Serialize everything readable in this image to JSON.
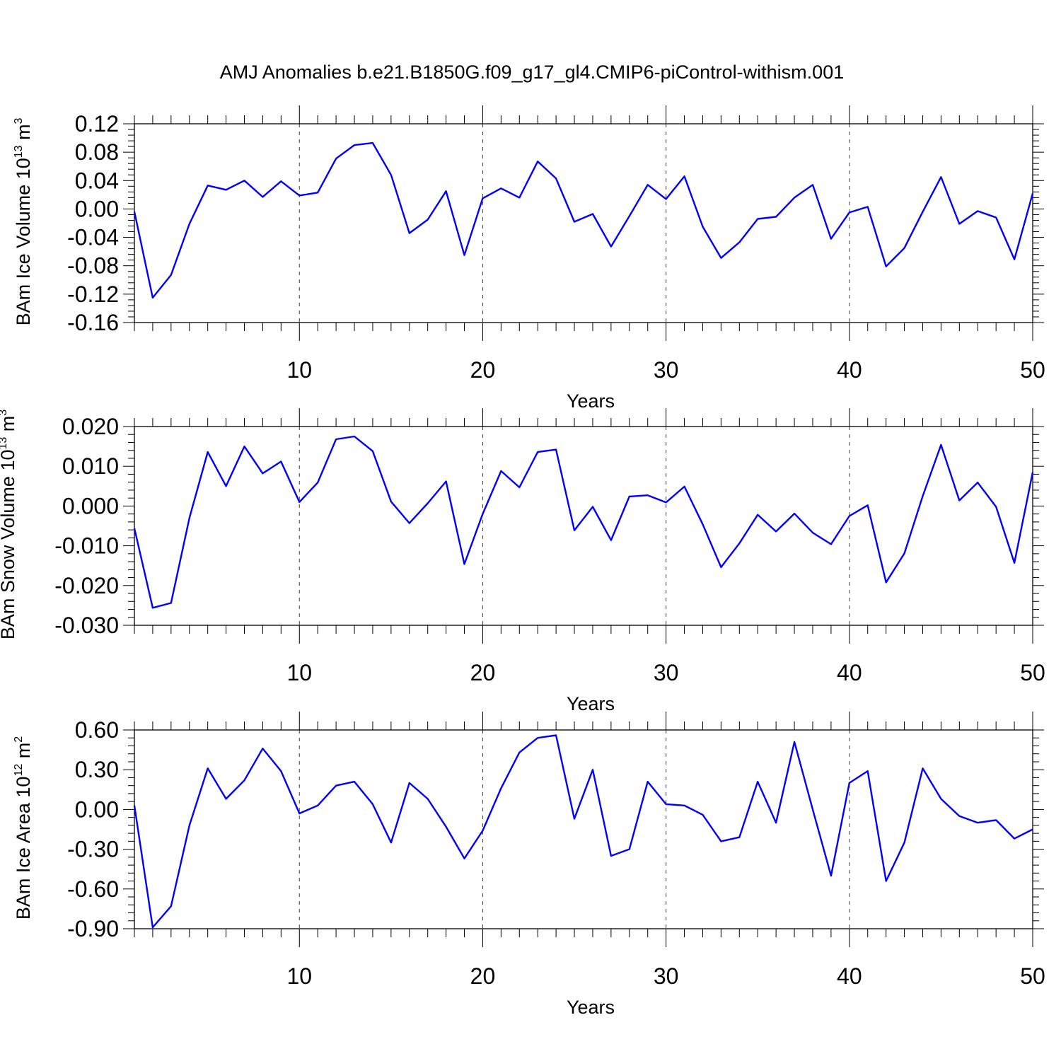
{
  "title": "AMJ Anomalies b.e21.B1850G.f09_g17_gl4.CMIP6-piControl-withism.001",
  "chart_data": [
    {
      "type": "line",
      "ylabel": "BAm Ice Volume 10",
      "ylabel_exp": "13",
      "ylabel_unit": "m",
      "ylabel_unit_exp": "3",
      "xlabel": "Years",
      "xlim": [
        1,
        50
      ],
      "ylim": [
        -0.16,
        0.12
      ],
      "xticks": [
        10,
        20,
        30,
        40,
        50
      ],
      "yticks": [
        0.12,
        0.08,
        0.04,
        0.0,
        -0.04,
        -0.08,
        -0.12,
        -0.16
      ],
      "ytick_labels": [
        "0.12",
        "0.08",
        "0.04",
        "0.00",
        "-0.04",
        "-0.08",
        "-0.12",
        "-0.16"
      ],
      "grid": "vertical dashed at x ticks",
      "color": "#0000ff",
      "series": [
        {
          "x": [
            1,
            2,
            3,
            4,
            5,
            6,
            7,
            8,
            9,
            10,
            11,
            12,
            13,
            14,
            15,
            16,
            17,
            18,
            19,
            20,
            21,
            22,
            23,
            24,
            25,
            26,
            27,
            28,
            29,
            30,
            31,
            32,
            33,
            34,
            35,
            36,
            37,
            38,
            39,
            40,
            41,
            42,
            43,
            44,
            45,
            46,
            47,
            48,
            49,
            50
          ],
          "values": [
            -0.004,
            -0.125,
            -0.093,
            -0.021,
            0.033,
            0.027,
            0.04,
            0.017,
            0.039,
            0.019,
            0.023,
            0.071,
            0.09,
            0.093,
            0.048,
            -0.034,
            -0.015,
            0.025,
            -0.065,
            0.015,
            0.029,
            0.016,
            0.067,
            0.043,
            -0.018,
            -0.007,
            -0.053,
            -0.01,
            0.034,
            0.014,
            0.046,
            -0.025,
            -0.069,
            -0.047,
            -0.014,
            -0.011,
            0.016,
            0.034,
            -0.042,
            -0.005,
            0.003,
            -0.081,
            -0.055,
            -0.004,
            0.045,
            -0.021,
            -0.003,
            -0.012,
            -0.071,
            0.022
          ]
        }
      ]
    },
    {
      "type": "line",
      "ylabel": "BAm Snow Volume 10",
      "ylabel_exp": "13",
      "ylabel_unit": "m",
      "ylabel_unit_exp": "3",
      "xlabel": "Years",
      "xlim": [
        1,
        50
      ],
      "ylim": [
        -0.03,
        0.02
      ],
      "xticks": [
        10,
        20,
        30,
        40,
        50
      ],
      "yticks": [
        0.02,
        0.01,
        0.0,
        -0.01,
        -0.02,
        -0.03
      ],
      "ytick_labels": [
        "0.020",
        "0.010",
        "0.000",
        "-0.010",
        "-0.020",
        "-0.030"
      ],
      "grid": "vertical dashed at x ticks",
      "color": "#0000ff",
      "series": [
        {
          "x": [
            1,
            2,
            3,
            4,
            5,
            6,
            7,
            8,
            9,
            10,
            11,
            12,
            13,
            14,
            15,
            16,
            17,
            18,
            19,
            20,
            21,
            22,
            23,
            24,
            25,
            26,
            27,
            28,
            29,
            30,
            31,
            32,
            33,
            34,
            35,
            36,
            37,
            38,
            39,
            40,
            41,
            42,
            43,
            44,
            45,
            46,
            47,
            48,
            49,
            50
          ],
          "values": [
            -0.0056,
            -0.0256,
            -0.0244,
            -0.003,
            0.0136,
            0.005,
            0.015,
            0.0082,
            0.0112,
            0.001,
            0.0059,
            0.0168,
            0.0175,
            0.0138,
            0.0011,
            -0.0043,
            0.0007,
            0.0062,
            -0.0146,
            -0.002,
            0.0088,
            0.0047,
            0.0136,
            0.0142,
            -0.0061,
            -0.0002,
            -0.0086,
            0.0024,
            0.0027,
            0.0009,
            0.0049,
            -0.0046,
            -0.0154,
            -0.0094,
            -0.0022,
            -0.0064,
            -0.0019,
            -0.0067,
            -0.0096,
            -0.0025,
            0.0002,
            -0.0192,
            -0.0119,
            0.0025,
            0.0154,
            0.0014,
            0.0059,
            -0.0002,
            -0.0143,
            0.0085
          ]
        }
      ]
    },
    {
      "type": "line",
      "ylabel": "BAm Ice Area 10",
      "ylabel_exp": "12",
      "ylabel_unit": "m",
      "ylabel_unit_exp": "2",
      "xlabel": "Years",
      "xlim": [
        1,
        50
      ],
      "ylim": [
        -0.9,
        0.6
      ],
      "xticks": [
        10,
        20,
        30,
        40,
        50
      ],
      "yticks": [
        0.6,
        0.3,
        0.0,
        -0.3,
        -0.6,
        -0.9
      ],
      "ytick_labels": [
        "0.60",
        "0.30",
        "0.00",
        "-0.30",
        "-0.60",
        "-0.90"
      ],
      "grid": "vertical dashed at x ticks",
      "color": "#0000ff",
      "series": [
        {
          "x": [
            1,
            2,
            3,
            4,
            5,
            6,
            7,
            8,
            9,
            10,
            11,
            12,
            13,
            14,
            15,
            16,
            17,
            18,
            19,
            20,
            21,
            22,
            23,
            24,
            25,
            26,
            27,
            28,
            29,
            30,
            31,
            32,
            33,
            34,
            35,
            36,
            37,
            38,
            39,
            40,
            41,
            42,
            43,
            44,
            45,
            46,
            47,
            48,
            49,
            50
          ],
          "values": [
            0.03,
            -0.89,
            -0.73,
            -0.12,
            0.31,
            0.08,
            0.22,
            0.46,
            0.29,
            -0.03,
            0.03,
            0.18,
            0.21,
            0.04,
            -0.25,
            0.2,
            0.08,
            -0.13,
            -0.37,
            -0.16,
            0.16,
            0.43,
            0.54,
            0.56,
            -0.07,
            0.3,
            -0.35,
            -0.3,
            0.21,
            0.04,
            0.03,
            -0.04,
            -0.24,
            -0.21,
            0.21,
            -0.1,
            0.51,
            0.0,
            -0.5,
            0.2,
            0.29,
            -0.54,
            -0.25,
            0.31,
            0.08,
            -0.05,
            -0.1,
            -0.08,
            -0.22,
            -0.15
          ]
        }
      ]
    }
  ]
}
